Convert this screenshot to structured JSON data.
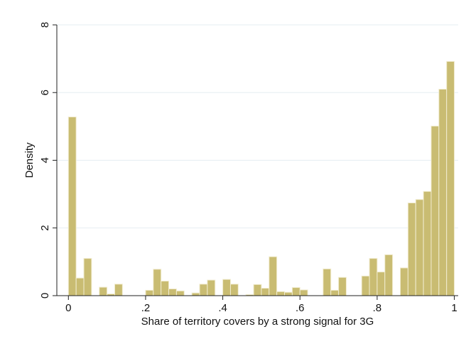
{
  "chart_data": {
    "type": "bar",
    "title": "",
    "xlabel": "Share of territory covers by a strong signal for 3G",
    "ylabel": "Density",
    "xlim": [
      -0.03,
      1.01
    ],
    "ylim": [
      0,
      8
    ],
    "xticks": [
      {
        "value": 0,
        "label": "0"
      },
      {
        "value": 0.2,
        "label": ".2"
      },
      {
        "value": 0.4,
        "label": ".4"
      },
      {
        "value": 0.6,
        "label": ".6"
      },
      {
        "value": 0.8,
        "label": ".8"
      },
      {
        "value": 1.0,
        "label": "1"
      }
    ],
    "yticks": [
      {
        "value": 0,
        "label": "0"
      },
      {
        "value": 2,
        "label": "2"
      },
      {
        "value": 4,
        "label": "4"
      },
      {
        "value": 6,
        "label": "6"
      },
      {
        "value": 8,
        "label": "8"
      }
    ],
    "grid": true,
    "bin_width": 0.02,
    "bin_start": 0.0,
    "values": [
      5.28,
      0.52,
      1.1,
      0,
      0.25,
      0.05,
      0.34,
      0,
      0,
      0,
      0.16,
      0.78,
      0.43,
      0.2,
      0.14,
      0,
      0.08,
      0.34,
      0.46,
      0,
      0.48,
      0.34,
      0,
      0.03,
      0.33,
      0.22,
      1.15,
      0.12,
      0.1,
      0.24,
      0.17,
      0,
      0,
      0.79,
      0.16,
      0.54,
      0,
      0,
      0.58,
      1.1,
      0.7,
      1.21,
      0,
      0.82,
      2.74,
      2.84,
      3.08,
      5.01,
      6.1,
      6.92
    ],
    "colors": {
      "bar_fill": "#c9bc72",
      "bar_stroke": "#f1ecd0",
      "grid": "#e6eef2",
      "axis": "#222222"
    }
  }
}
